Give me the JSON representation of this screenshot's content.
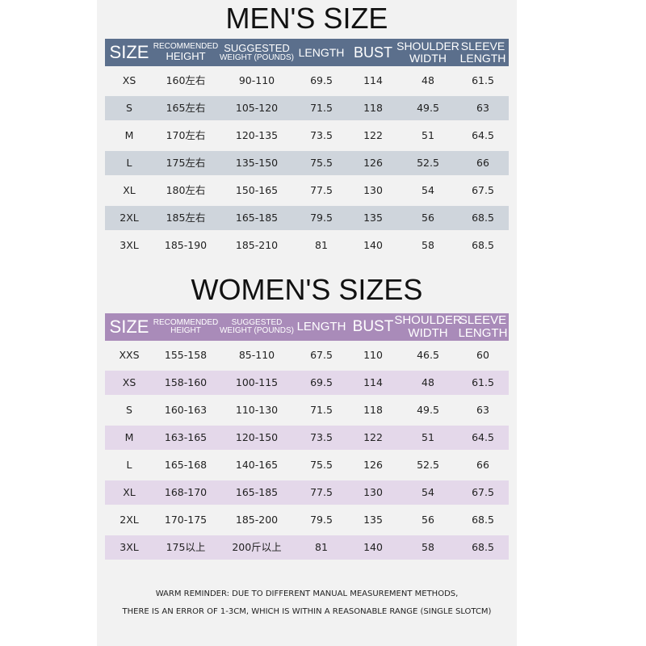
{
  "men": {
    "title": "MEN'S SIZE",
    "headers": [
      [
        "SIZE"
      ],
      [
        "RECOMMENDED",
        "HEIGHT"
      ],
      [
        "SUGGESTED",
        "WEIGHT (POUNDS)"
      ],
      [
        "LENGTH"
      ],
      [
        "BUST"
      ],
      [
        "SHOULDER",
        "WIDTH"
      ],
      [
        "SLEEVE",
        "LENGTH"
      ]
    ],
    "rows": [
      [
        "XS",
        "160左右",
        "90-110",
        "69.5",
        "114",
        "48",
        "61.5"
      ],
      [
        "S",
        "165左右",
        "105-120",
        "71.5",
        "118",
        "49.5",
        "63"
      ],
      [
        "M",
        "170左右",
        "120-135",
        "73.5",
        "122",
        "51",
        "64.5"
      ],
      [
        "L",
        "175左右",
        "135-150",
        "75.5",
        "126",
        "52.5",
        "66"
      ],
      [
        "XL",
        "180左右",
        "150-165",
        "77.5",
        "130",
        "54",
        "67.5"
      ],
      [
        "2XL",
        "185左右",
        "165-185",
        "79.5",
        "135",
        "56",
        "68.5"
      ],
      [
        "3XL",
        "185-190",
        "185-210",
        "81",
        "140",
        "58",
        "68.5"
      ]
    ]
  },
  "women": {
    "title": "WOMEN'S SIZES",
    "headers": [
      [
        "SIZE"
      ],
      [
        "RECOMMENDED",
        "HEIGHT"
      ],
      [
        "SUGGESTED",
        "WEIGHT (POUNDS)"
      ],
      [
        "LENGTH"
      ],
      [
        "BUST"
      ],
      [
        "SHOULDER",
        "WIDTH"
      ],
      [
        "SLEEVE",
        "LENGTH"
      ]
    ],
    "rows": [
      [
        "XXS",
        "155-158",
        "85-110",
        "67.5",
        "110",
        "46.5",
        "60"
      ],
      [
        "XS",
        "158-160",
        "100-115",
        "69.5",
        "114",
        "48",
        "61.5"
      ],
      [
        "S",
        "160-163",
        "110-130",
        "71.5",
        "118",
        "49.5",
        "63"
      ],
      [
        "M",
        "163-165",
        "120-150",
        "73.5",
        "122",
        "51",
        "64.5"
      ],
      [
        "L",
        "165-168",
        "140-165",
        "75.5",
        "126",
        "52.5",
        "66"
      ],
      [
        "XL",
        "168-170",
        "165-185",
        "77.5",
        "130",
        "54",
        "67.5"
      ],
      [
        "2XL",
        "170-175",
        "185-200",
        "79.5",
        "135",
        "56",
        "68.5"
      ],
      [
        "3XL",
        "175以上",
        "200斤以上",
        "81",
        "140",
        "58",
        "68.5"
      ]
    ]
  },
  "reminder": [
    "WARM REMINDER: DUE TO DIFFERENT MANUAL MEASUREMENT METHODS,",
    "THERE IS AN ERROR OF 1-3CM, WHICH IS WITHIN A REASONABLE RANGE (SINGLE SLOTCM)"
  ]
}
